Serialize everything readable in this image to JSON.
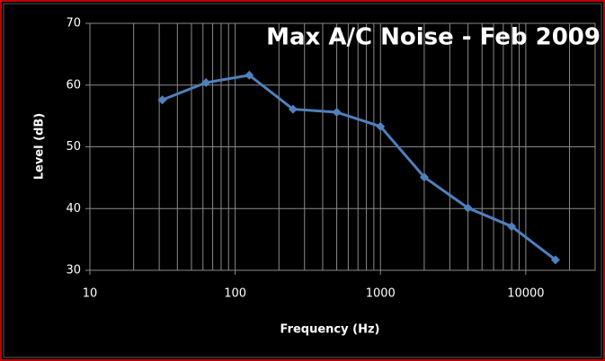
{
  "chart_data": {
    "type": "line",
    "title": "Max A/C Noise - Feb 2009",
    "x_label": "Frequency (Hz)",
    "y_label": "Level (dB)",
    "x": [
      31.5,
      63,
      125,
      250,
      500,
      1000,
      2000,
      4000,
      8000,
      16000
    ],
    "values": [
      57.6,
      60.4,
      61.6,
      56.1,
      55.6,
      53.3,
      45.1,
      40.1,
      37.1,
      31.7
    ],
    "color": "#4f81bd",
    "x_log": true,
    "xlim": [
      10,
      30000
    ],
    "xticks": [
      10,
      100,
      1000,
      10000
    ],
    "ylim": [
      30,
      70
    ],
    "yticks": [
      30,
      40,
      50,
      60,
      70
    ],
    "grid": true,
    "minor_grid": true
  }
}
